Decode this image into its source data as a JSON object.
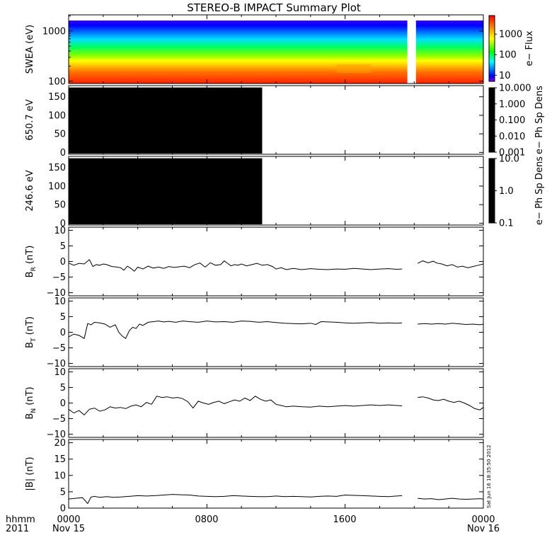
{
  "title": "STEREO-B IMPACT Summary Plot",
  "footer": {
    "row_label_1": "hhmm",
    "row_label_2": "2011",
    "date_start": "Nov 15",
    "date_end": "Nov 16",
    "x_ticks": [
      "0000",
      "0800",
      "1600",
      "0000"
    ],
    "timestamp": "Sat Jun 16 18:35:50 2012"
  },
  "chart_data": [
    {
      "id": "swea",
      "type": "heatmap",
      "ylabel": "SWEA (eV)",
      "yscale": "log",
      "ylim": [
        90,
        2100
      ],
      "yticks": [
        100,
        1000
      ],
      "ytick_labels": [
        "100",
        "1000"
      ],
      "colorbar": {
        "label": "e− Flux",
        "scale": "log",
        "range": [
          5,
          8000
        ],
        "ticks": [
          10,
          100,
          1000
        ],
        "tick_labels": [
          "10",
          "100",
          "1000"
        ]
      },
      "data_gap_hours": [
        [
          19.6,
          20.1
        ]
      ],
      "xlim_hours": [
        0,
        24
      ],
      "colors": [
        "#ff0000",
        "#ff8800",
        "#ffff00",
        "#00ff00",
        "#00ffff",
        "#0000ff",
        "#8000ff"
      ]
    },
    {
      "id": "pad650",
      "type": "heatmap",
      "ylabel": "650.7 eV",
      "ylim": [
        -5,
        180
      ],
      "yticks": [
        0,
        50,
        100,
        150
      ],
      "ytick_labels": [
        "0",
        "50",
        "100",
        "150"
      ],
      "filled_hours": [
        0,
        11.2
      ],
      "fill_color": "#000000",
      "colorbar": {
        "label": "e− Ph Sp Dens",
        "scale": "log",
        "range": [
          0.001,
          10
        ],
        "ticks": [
          0.001,
          0.01,
          0.1,
          1,
          10
        ],
        "tick_labels": [
          "0.001",
          "0.010",
          "0.100",
          "1.000",
          "10.000"
        ]
      }
    },
    {
      "id": "pad246",
      "type": "heatmap",
      "ylabel": "246.6 eV",
      "ylim": [
        -5,
        180
      ],
      "yticks": [
        0,
        50,
        100,
        150
      ],
      "ytick_labels": [
        "0",
        "50",
        "100",
        "150"
      ],
      "filled_hours": [
        0,
        11.2
      ],
      "fill_color": "#000000",
      "colorbar": {
        "label": "e− Ph Sp Dens",
        "scale": "log",
        "range": [
          0.1,
          10
        ],
        "ticks": [
          0.1,
          1,
          10
        ],
        "tick_labels": [
          "0.1",
          "1.0",
          "10.0"
        ]
      }
    },
    {
      "id": "br",
      "type": "line",
      "ylabel_main": "B",
      "ylabel_sub": "R",
      "ylabel_unit": " (nT)",
      "ylim": [
        -11,
        11
      ],
      "yticks": [
        -10,
        -5,
        0,
        5,
        10
      ],
      "ytick_labels": [
        "−10",
        "−5",
        "0",
        "5",
        "10"
      ],
      "series": [
        {
          "x": [
            0,
            0.3,
            0.6,
            0.9,
            1.2,
            1.4,
            1.6,
            1.8,
            2,
            2.2,
            2.5,
            2.8,
            3,
            3.2,
            3.4,
            3.6,
            3.8,
            4,
            4.3,
            4.6,
            4.9,
            5.2,
            5.5,
            5.8,
            6.1,
            6.4,
            6.7,
            7,
            7.3,
            7.6,
            7.9,
            8.2,
            8.5,
            8.8,
            9,
            9.2,
            9.4,
            9.6,
            9.8,
            10,
            10.3,
            10.6,
            10.9,
            11.2,
            11.5,
            11.8,
            12,
            12.3,
            12.6,
            13,
            13.5,
            14,
            14.5,
            15,
            15.5,
            16,
            16.5,
            17,
            17.5,
            18,
            18.5,
            19,
            19.3
          ],
          "y": [
            -0.5,
            -1.2,
            -0.6,
            -0.8,
            0.6,
            -1.6,
            -1.0,
            -1.2,
            -0.8,
            -1.0,
            -1.6,
            -1.8,
            -2.0,
            -2.8,
            -1.5,
            -2.2,
            -3.1,
            -1.8,
            -2.4,
            -1.5,
            -2.1,
            -1.8,
            -2.2,
            -1.6,
            -1.9,
            -1.7,
            -1.5,
            -2.0,
            -1.0,
            -0.5,
            -1.8,
            -0.4,
            -1.2,
            -1.0,
            0.2,
            -0.6,
            -1.4,
            -1.0,
            -1.2,
            -0.8,
            -1.4,
            -1.0,
            -0.6,
            -1.2,
            -1.0,
            -1.6,
            -2.4,
            -2.0,
            -2.6,
            -2.2,
            -2.6,
            -2.3,
            -2.5,
            -2.6,
            -2.4,
            -2.5,
            -2.2,
            -2.4,
            -2.6,
            -2.4,
            -2.3,
            -2.5,
            -2.4
          ]
        },
        {
          "x": [
            20.2,
            20.5,
            20.8,
            21.1,
            21.3,
            21.6,
            21.9,
            22.2,
            22.5,
            22.8,
            23.1,
            23.4,
            23.7,
            24
          ],
          "y": [
            -0.6,
            0.2,
            -0.4,
            0.1,
            -0.5,
            -0.8,
            -1.4,
            -1.0,
            -1.8,
            -1.5,
            -2.0,
            -1.6,
            -1.2,
            -0.8
          ]
        }
      ]
    },
    {
      "id": "bt",
      "type": "line",
      "ylabel_main": "B",
      "ylabel_sub": "T",
      "ylabel_unit": " (nT)",
      "ylim": [
        -11,
        11
      ],
      "yticks": [
        -10,
        -5,
        0,
        5,
        10
      ],
      "ytick_labels": [
        "−10",
        "−5",
        "0",
        "5",
        "10"
      ],
      "series": [
        {
          "x": [
            0,
            0.3,
            0.6,
            0.9,
            1.1,
            1.3,
            1.5,
            1.8,
            2.1,
            2.4,
            2.7,
            2.9,
            3.1,
            3.3,
            3.5,
            3.7,
            3.9,
            4.1,
            4.3,
            4.6,
            4.9,
            5.2,
            5.5,
            5.8,
            6.2,
            6.6,
            7,
            7.5,
            8,
            8.5,
            9,
            9.5,
            10,
            10.5,
            11,
            11.5,
            12,
            12.5,
            13,
            13.5,
            14,
            14.3,
            14.6,
            15,
            15.5,
            16,
            16.5,
            17,
            17.5,
            18,
            18.5,
            19,
            19.3
          ],
          "y": [
            -1.5,
            -0.6,
            -1.0,
            -2.0,
            2.8,
            2.4,
            3.2,
            3.0,
            2.6,
            1.6,
            2.4,
            0.0,
            -1.2,
            -2.0,
            0.4,
            1.6,
            1.2,
            2.6,
            2.2,
            3.2,
            3.4,
            3.6,
            3.3,
            3.5,
            3.2,
            3.6,
            3.4,
            3.2,
            3.6,
            3.3,
            3.4,
            3.2,
            3.6,
            3.5,
            3.2,
            3.4,
            3.1,
            2.9,
            2.8,
            2.7,
            2.9,
            2.5,
            3.4,
            3.3,
            3.2,
            3.0,
            2.9,
            3.0,
            3.1,
            2.9,
            3.0,
            2.9,
            3.0
          ]
        },
        {
          "x": [
            20.2,
            20.6,
            21,
            21.4,
            21.8,
            22.2,
            22.6,
            23,
            23.4,
            23.8,
            24
          ],
          "y": [
            2.6,
            2.8,
            2.6,
            2.8,
            2.6,
            2.9,
            2.7,
            2.5,
            2.6,
            2.4,
            2.6
          ]
        }
      ]
    },
    {
      "id": "bn",
      "type": "line",
      "ylabel_main": "B",
      "ylabel_sub": "N",
      "ylabel_unit": " (nT)",
      "ylim": [
        -11,
        11
      ],
      "yticks": [
        -10,
        -5,
        0,
        5,
        10
      ],
      "ytick_labels": [
        "−10",
        "−5",
        "0",
        "5",
        "10"
      ],
      "series": [
        {
          "x": [
            0,
            0.3,
            0.6,
            0.9,
            1.2,
            1.5,
            1.8,
            2.1,
            2.4,
            2.7,
            3,
            3.3,
            3.6,
            3.9,
            4.2,
            4.5,
            4.8,
            5.1,
            5.4,
            5.7,
            6,
            6.3,
            6.6,
            6.9,
            7.2,
            7.5,
            7.8,
            8.1,
            8.4,
            8.7,
            9,
            9.3,
            9.6,
            9.9,
            10.2,
            10.5,
            10.8,
            11.1,
            11.4,
            11.7,
            12,
            12.3,
            12.6,
            13,
            13.5,
            14,
            14.5,
            15,
            15.5,
            16,
            16.5,
            17,
            17.5,
            18,
            18.5,
            19,
            19.3
          ],
          "y": [
            -2.0,
            -3.2,
            -2.4,
            -3.8,
            -2.0,
            -1.6,
            -2.6,
            -2.2,
            -1.2,
            -1.6,
            -1.4,
            -1.8,
            -1.0,
            -0.6,
            -1.2,
            0.2,
            -0.4,
            2.2,
            1.8,
            2.0,
            1.6,
            1.8,
            1.4,
            0.4,
            -1.6,
            0.6,
            0.0,
            -0.4,
            0.2,
            0.6,
            -0.2,
            0.4,
            1.0,
            0.6,
            1.6,
            0.8,
            2.2,
            1.2,
            0.6,
            1.0,
            -0.4,
            -0.8,
            -1.2,
            -1.0,
            -1.2,
            -1.3,
            -1.0,
            -1.2,
            -1.0,
            -0.8,
            -1.0,
            -0.8,
            -0.6,
            -0.8,
            -0.6,
            -0.8,
            -0.9
          ]
        },
        {
          "x": [
            20.2,
            20.5,
            20.8,
            21.1,
            21.4,
            21.7,
            22,
            22.3,
            22.6,
            22.9,
            23.2,
            23.5,
            23.8,
            24
          ],
          "y": [
            1.8,
            2.0,
            1.6,
            1.0,
            0.8,
            1.2,
            0.6,
            0.2,
            0.6,
            0.0,
            -0.8,
            -1.8,
            -2.2,
            -1.4
          ]
        }
      ]
    },
    {
      "id": "bmag",
      "type": "line",
      "ylabel_main": "|B| (nT)",
      "ylim": [
        0,
        21
      ],
      "yticks": [
        0,
        5,
        10,
        15,
        20
      ],
      "ytick_labels": [
        "0",
        "5",
        "10",
        "15",
        "20"
      ],
      "series": [
        {
          "x": [
            0,
            0.4,
            0.8,
            1.1,
            1.3,
            1.5,
            1.8,
            2.2,
            2.6,
            3,
            3.5,
            4,
            4.5,
            5,
            5.5,
            6,
            6.5,
            7,
            7.5,
            8,
            8.5,
            9,
            9.5,
            10,
            10.5,
            11,
            11.5,
            12,
            12.5,
            13,
            13.5,
            14,
            14.5,
            15,
            15.5,
            16,
            16.5,
            17,
            17.5,
            18,
            18.5,
            19,
            19.3
          ],
          "y": [
            2.8,
            3.0,
            3.2,
            1.4,
            3.4,
            3.6,
            3.3,
            3.5,
            3.3,
            3.4,
            3.6,
            3.8,
            3.7,
            3.8,
            4.0,
            4.2,
            4.1,
            4.0,
            3.7,
            3.6,
            3.5,
            3.6,
            3.8,
            3.7,
            3.6,
            3.5,
            3.5,
            3.7,
            3.5,
            3.6,
            3.5,
            3.4,
            3.6,
            3.7,
            3.6,
            4.0,
            3.9,
            3.8,
            3.7,
            3.6,
            3.5,
            3.7,
            3.8
          ]
        },
        {
          "x": [
            20.2,
            20.6,
            21,
            21.4,
            21.8,
            22.2,
            22.6,
            23,
            23.4,
            23.8,
            24
          ],
          "y": [
            3.0,
            2.8,
            2.9,
            2.6,
            2.8,
            3.0,
            2.8,
            2.7,
            2.8,
            2.9,
            2.8
          ]
        }
      ]
    }
  ]
}
